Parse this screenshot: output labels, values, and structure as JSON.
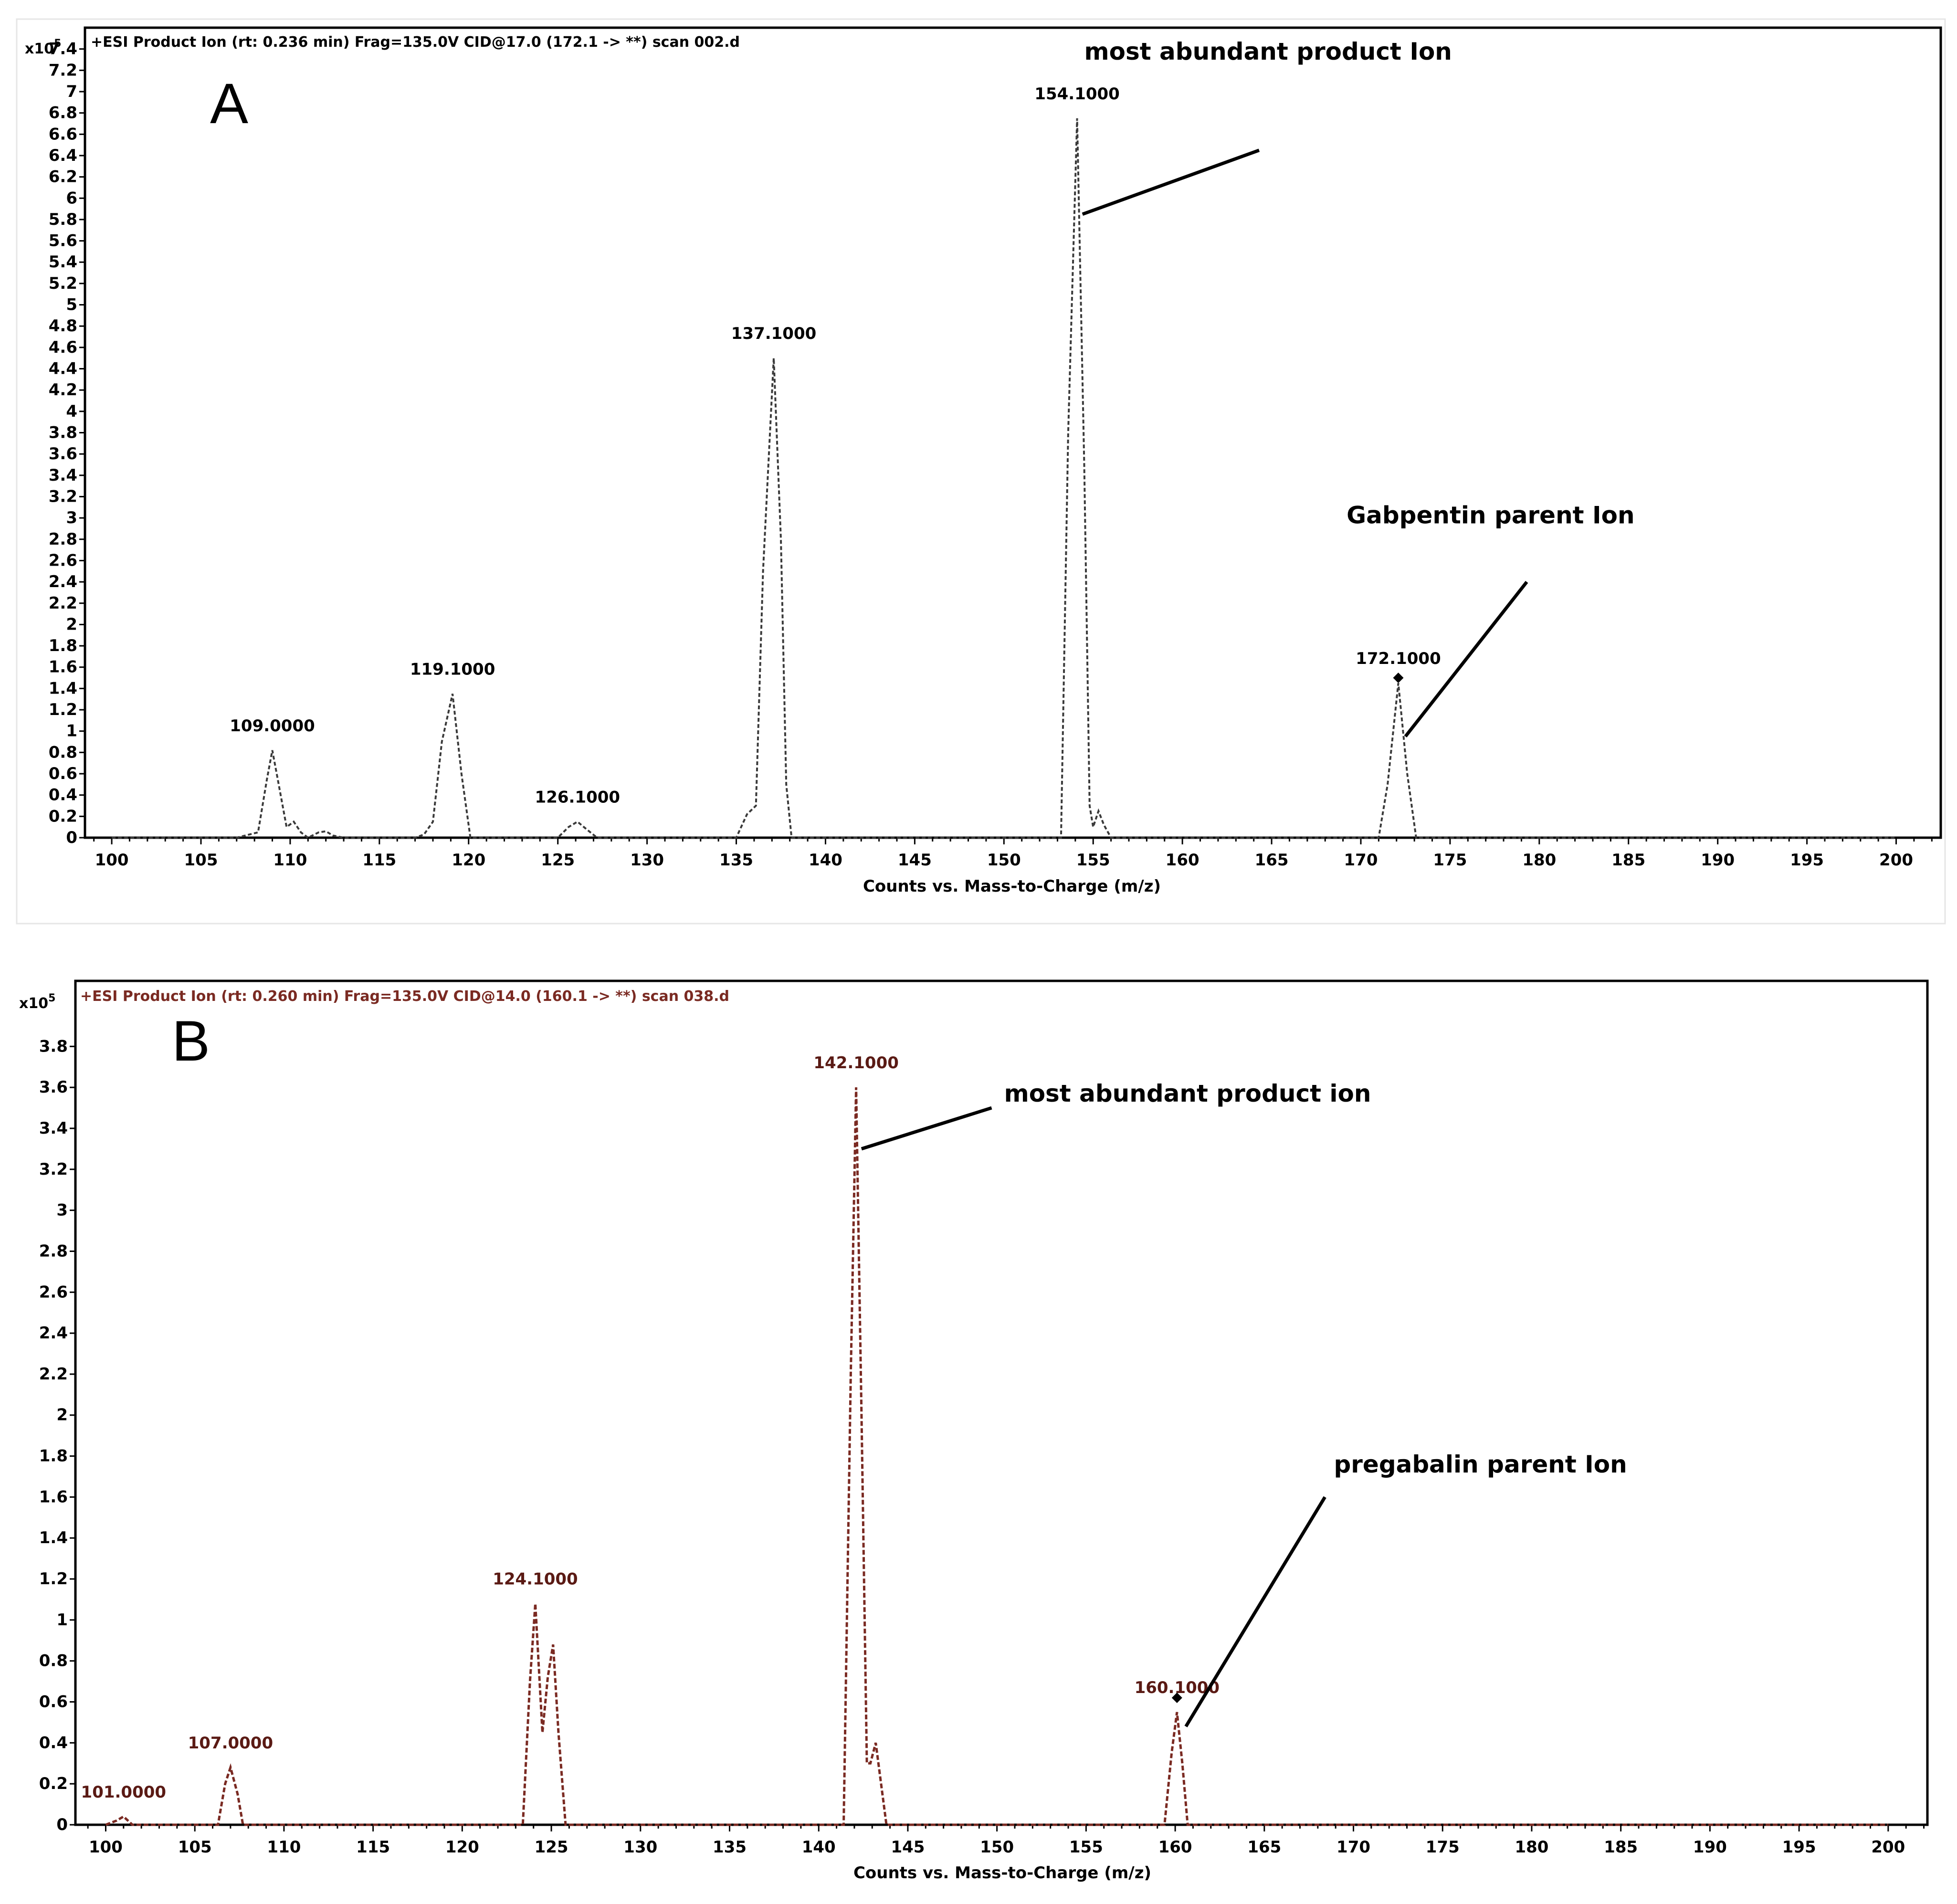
{
  "chart_data": [
    {
      "type": "line",
      "panel_letter": "A",
      "title": "+ESI Product Ion (rt: 0.236 min) Frag=135.0V CID@17.0 (172.1 -> **) scan 002.d",
      "xlabel": "Counts vs. Mass-to-Charge (m/z)",
      "ylabel": "",
      "y_multiplier": "x10",
      "y_multiplier_exp": "5",
      "xlim": [
        98.5,
        202.5
      ],
      "ylim": [
        0,
        7.6
      ],
      "xticks": [
        100,
        105,
        110,
        115,
        120,
        125,
        130,
        135,
        140,
        145,
        150,
        155,
        160,
        165,
        170,
        175,
        180,
        185,
        190,
        195,
        200
      ],
      "yticks": [
        0,
        0.2,
        0.4,
        0.6,
        0.8,
        1,
        1.2,
        1.4,
        1.6,
        1.8,
        2,
        2.2,
        2.4,
        2.6,
        2.8,
        3,
        3.2,
        3.4,
        3.6,
        3.8,
        4,
        4.2,
        4.4,
        4.6,
        4.8,
        5,
        5.2,
        5.4,
        5.6,
        5.8,
        6,
        6.2,
        6.4,
        6.6,
        6.8,
        7,
        7.2,
        7.4
      ],
      "line_color": "#3a3a3a",
      "series": [
        {
          "x": [
            100,
            107,
            108.2,
            108.7,
            109.0,
            109.3,
            109.8,
            110.2,
            110.6,
            111.0,
            111.6,
            112.0,
            112.4,
            113.0,
            117.0,
            117.5,
            118.0,
            118.5,
            119.1,
            119.6,
            120.1,
            125.0,
            125.6,
            126.1,
            126.6,
            127.2,
            135.0,
            135.6,
            136.1,
            136.5,
            137.1,
            137.5,
            137.8,
            138.1,
            153.2,
            153.6,
            154.1,
            154.5,
            154.8,
            155.0,
            155.3,
            155.6,
            156.0,
            171.0,
            171.5,
            172.1,
            172.6,
            173.1,
            200
          ],
          "y": [
            0,
            0,
            0.05,
            0.55,
            0.82,
            0.55,
            0.1,
            0.15,
            0.05,
            0,
            0.05,
            0.06,
            0.02,
            0,
            0,
            0.03,
            0.15,
            0.9,
            1.35,
            0.6,
            0,
            0,
            0.1,
            0.15,
            0.08,
            0,
            0,
            0.22,
            0.3,
            2.5,
            4.5,
            2.8,
            0.5,
            0,
            0,
            3.8,
            6.75,
            3.5,
            0.3,
            0.1,
            0.25,
            0.12,
            0,
            0,
            0.5,
            1.45,
            0.6,
            0,
            0
          ]
        }
      ],
      "peak_labels": [
        {
          "x": 109.0,
          "y": 0.82,
          "text": "109.0000"
        },
        {
          "x": 119.1,
          "y": 1.35,
          "text": "119.1000"
        },
        {
          "x": 126.1,
          "y": 0.15,
          "text": "126.1000"
        },
        {
          "x": 137.1,
          "y": 4.5,
          "text": "137.1000"
        },
        {
          "x": 154.1,
          "y": 6.75,
          "text": "154.1000"
        },
        {
          "x": 172.1,
          "y": 1.45,
          "text": "172.1000"
        }
      ],
      "precursor_marker": {
        "x": 172.1,
        "y": 1.5
      },
      "annotations": [
        {
          "text": "most abundant product Ion",
          "text_x": 154.5,
          "text_y": 7.3,
          "line_from": [
            154.4,
            5.85
          ],
          "line_to": [
            164.3,
            6.45
          ]
        },
        {
          "text": "Gabpentin parent Ion",
          "text_x": 169.2,
          "text_y": 2.95,
          "line_from": [
            172.5,
            0.95
          ],
          "line_to": [
            179.3,
            2.4
          ]
        }
      ]
    },
    {
      "type": "line",
      "panel_letter": "B",
      "title": "+ESI Product Ion (rt: 0.260 min) Frag=135.0V CID@14.0 (160.1 -> **) scan 038.d",
      "xlabel": "Counts vs. Mass-to-Charge (m/z)",
      "ylabel": "",
      "y_multiplier": "x10",
      "y_multiplier_exp": "5",
      "xlim": [
        98.3,
        202.2
      ],
      "ylim": [
        0,
        4.12
      ],
      "xticks": [
        100,
        105,
        110,
        115,
        120,
        125,
        130,
        135,
        140,
        145,
        150,
        155,
        160,
        165,
        170,
        175,
        180,
        185,
        190,
        195,
        200
      ],
      "yticks": [
        0,
        0.2,
        0.4,
        0.6,
        0.8,
        1,
        1.2,
        1.4,
        1.6,
        1.8,
        2,
        2.2,
        2.4,
        2.6,
        2.8,
        3,
        3.2,
        3.4,
        3.6,
        3.8
      ],
      "line_color": "#7a2a22",
      "series": [
        {
          "x": [
            100,
            100.6,
            101.0,
            101.5,
            106.3,
            106.7,
            107.0,
            107.4,
            107.7,
            123.4,
            123.8,
            124.1,
            124.5,
            124.8,
            125.1,
            125.4,
            125.8,
            141.4,
            141.8,
            142.1,
            142.4,
            142.7,
            142.9,
            143.2,
            143.5,
            143.8,
            159.4,
            159.8,
            160.1,
            160.4,
            160.7,
            200
          ],
          "y": [
            0,
            0.02,
            0.04,
            0,
            0,
            0.2,
            0.28,
            0.15,
            0,
            0,
            0.7,
            1.08,
            0.45,
            0.72,
            0.88,
            0.45,
            0,
            0,
            2.2,
            3.6,
            2.0,
            0.3,
            0.3,
            0.4,
            0.2,
            0,
            0,
            0.35,
            0.55,
            0.3,
            0,
            0
          ]
        }
      ],
      "peak_labels": [
        {
          "x": 101.0,
          "y": 0.04,
          "text": "101.0000"
        },
        {
          "x": 107.0,
          "y": 0.28,
          "text": "107.0000"
        },
        {
          "x": 124.1,
          "y": 1.08,
          "text": "124.1000"
        },
        {
          "x": 142.1,
          "y": 3.6,
          "text": "142.1000"
        },
        {
          "x": 160.1,
          "y": 0.55,
          "text": "160.1000"
        }
      ],
      "precursor_marker": {
        "x": 160.1,
        "y": 0.62
      },
      "annotations": [
        {
          "text": "most abundant product ion",
          "text_x": 150.4,
          "text_y": 3.53,
          "line_from": [
            142.4,
            3.3
          ],
          "line_to": [
            149.7,
            3.5
          ]
        },
        {
          "text": "pregabalin parent Ion",
          "text_x": 168.9,
          "text_y": 1.72,
          "line_from": [
            160.6,
            0.48
          ],
          "line_to": [
            168.4,
            1.6
          ]
        }
      ]
    }
  ]
}
